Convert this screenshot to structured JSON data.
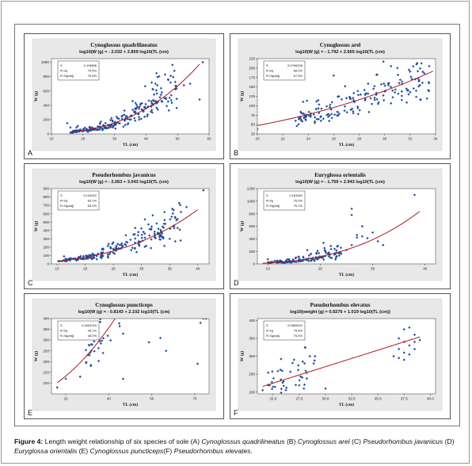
{
  "caption": {
    "label": "Figure 4:",
    "text1": " Length weight relationship of six species of sole (A) ",
    "sp_a": "Cynoglossus quadrilineatus",
    "t_b": " (B) ",
    "sp_b": "Cynoglossus   arel",
    "t_c": " (C) ",
    "sp_c": "Pseudorhombus javanicus",
    "t_d": " (D) ",
    "sp_d": "Euryglossa orientalis",
    "t_e": " (E) ",
    "sp_e": "Cynoglossus puncticeps",
    "t_f": "(F) ",
    "sp_f": "Pseudorhombus elevates."
  },
  "colors": {
    "points": "#1f4e9c",
    "fit": "#b0171f",
    "plot_bg": "#e8e8e8",
    "inner_bg": "#ffffff"
  },
  "chart_data": [
    {
      "id": "A",
      "type": "scatter",
      "letter": "A",
      "title": "Cynoglossus quadrilineatus",
      "subtitle": "log10(W (g) = - 2.032 + 2.859 log10(TL (cm)",
      "xlabel": "TL (cm)",
      "ylabel": "W (g)",
      "xlim": [
        10,
        60
      ],
      "ylim": [
        0,
        1050
      ],
      "xticks": [
        "10",
        "20",
        "30",
        "40",
        "50",
        "60"
      ],
      "xtick_values": [
        10,
        20,
        30,
        40,
        50,
        60
      ],
      "yticks": [
        "0",
        "200",
        "400",
        "600",
        "800",
        "1000"
      ],
      "ytick_values": [
        0,
        200,
        400,
        600,
        800,
        1000
      ],
      "stats": {
        "s_label": "S",
        "s": "0.118686",
        "r_label": "R-Sq",
        "r": "75.5%",
        "ra_label": "R-Sq(adj)",
        "ra": "75.5%"
      },
      "fit": {
        "a": -2.032,
        "b": 2.859,
        "x_range": [
          16,
          57
        ]
      },
      "gen": {
        "n": 230,
        "x_range": [
          16,
          50
        ],
        "noise": 0.13,
        "seed": 11
      },
      "points": [
        [
          15,
          150
        ],
        [
          52,
          680
        ],
        [
          54,
          700
        ],
        [
          57,
          480
        ],
        [
          58,
          1000
        ],
        [
          49,
          880
        ],
        [
          47,
          760
        ],
        [
          45,
          580
        ],
        [
          43,
          700
        ],
        [
          48,
          470
        ],
        [
          42,
          300
        ],
        [
          16,
          90
        ]
      ]
    },
    {
      "id": "B",
      "type": "scatter",
      "letter": "B",
      "title": "Cynoglossus arel",
      "subtitle": "log10(W (g) = - 1.792 + 2.665 log10(TL (cm)",
      "xlabel": "TL (cm)",
      "ylabel": "W (g)",
      "xlim": [
        20,
        34
      ],
      "ylim": [
        25,
        225
      ],
      "xticks": [
        "20",
        "22",
        "24",
        "26",
        "28",
        "30",
        "32",
        "34"
      ],
      "xtick_values": [
        20,
        22,
        24,
        26,
        28,
        30,
        32,
        34
      ],
      "yticks": [
        "25",
        "50",
        "75",
        "100",
        "125",
        "150",
        "175",
        "200",
        "225"
      ],
      "ytick_values": [
        25,
        50,
        75,
        100,
        125,
        150,
        175,
        200,
        225
      ],
      "stats": {
        "s_label": "S",
        "s": "0.0766428",
        "r_label": "R-Sq",
        "r": "68.0%",
        "ra_label": "R-Sq(adj)",
        "ra": "67.8%"
      },
      "fit": {
        "a": -1.792,
        "b": 2.665,
        "x_range": [
          20,
          33.8
        ]
      },
      "gen": {
        "n": 180,
        "x_range": [
          23,
          33.5
        ],
        "noise": 0.085,
        "seed": 23
      },
      "points": [
        [
          20,
          38
        ],
        [
          23,
          60
        ],
        [
          33.5,
          205
        ],
        [
          33,
          190
        ],
        [
          32.5,
          210
        ],
        [
          31,
          200
        ],
        [
          30.5,
          205
        ],
        [
          27,
          120
        ],
        [
          26,
          180
        ],
        [
          25,
          60
        ]
      ]
    },
    {
      "id": "C",
      "type": "scatter",
      "letter": "C",
      "title": "Pseudorhombus javanicus",
      "subtitle": "log10(W (g) = - 2.063 + 3.043 log10(TL (cm)",
      "xlabel": "TL (cm)",
      "ylabel": "W (g)",
      "xlim": [
        14,
        42
      ],
      "ylim": [
        0,
        900
      ],
      "xticks": [
        "15",
        "20",
        "25",
        "30",
        "35",
        "40"
      ],
      "xtick_values": [
        15,
        20,
        25,
        30,
        35,
        40
      ],
      "yticks": [
        "0",
        "100",
        "200",
        "300",
        "400",
        "500",
        "600",
        "700",
        "800",
        "900"
      ],
      "ytick_values": [
        0,
        100,
        200,
        300,
        400,
        500,
        600,
        700,
        800,
        900
      ],
      "stats": {
        "s_label": "S",
        "s": "0.104022",
        "r_label": "R-Sq",
        "r": "83.1%",
        "ra_label": "R-Sq(adj)",
        "ra": "83.0%"
      },
      "fit": {
        "a": -2.063,
        "b": 3.043,
        "x_range": [
          15,
          40
        ]
      },
      "gen": {
        "n": 200,
        "x_range": [
          15,
          37
        ],
        "noise": 0.11,
        "seed": 37
      },
      "points": [
        [
          41,
          880
        ],
        [
          38,
          680
        ],
        [
          37,
          620
        ],
        [
          36,
          550
        ],
        [
          35,
          300
        ],
        [
          36,
          270
        ],
        [
          33,
          420
        ],
        [
          32,
          580
        ],
        [
          34,
          480
        ]
      ]
    },
    {
      "id": "D",
      "type": "scatter",
      "letter": "D",
      "title": "Euryglossa orientalis",
      "subtitle": "log10(W (g) = - 1.759 + 2.943 log10(TL (cm)",
      "xlabel": "TL (cm)",
      "ylabel": "W (g)",
      "xlim": [
        8,
        42
      ],
      "ylim": [
        0,
        1200
      ],
      "xticks": [
        "10",
        "20",
        "30",
        "40"
      ],
      "xtick_values": [
        10,
        20,
        30,
        40
      ],
      "yticks": [
        "0",
        "200",
        "400",
        "600",
        "800",
        "1000",
        "1200"
      ],
      "ytick_values": [
        0,
        200,
        400,
        600,
        800,
        1000,
        1200
      ],
      "stats": {
        "s_label": "S",
        "s": "0.163452",
        "r_label": "R-Sq",
        "r": "76.3%",
        "ra_label": "R-Sq(adj)",
        "ra": "76.1%"
      },
      "fit": {
        "a": -1.759,
        "b": 2.943,
        "x_range": [
          9,
          39
        ]
      },
      "gen": {
        "n": 160,
        "x_range": [
          10,
          24
        ],
        "noise": 0.15,
        "seed": 51
      },
      "points": [
        [
          10,
          75
        ],
        [
          26,
          880
        ],
        [
          26,
          780
        ],
        [
          27,
          460
        ],
        [
          27,
          420
        ],
        [
          28,
          440
        ],
        [
          30,
          500
        ],
        [
          31,
          360
        ],
        [
          32,
          300
        ],
        [
          38,
          1100
        ],
        [
          28,
          600
        ],
        [
          26,
          300
        ],
        [
          25,
          220
        ],
        [
          29,
          410
        ]
      ]
    },
    {
      "id": "E",
      "type": "scatter",
      "letter": "E",
      "title": "Cynoglossus puncticeps",
      "subtitle": "log10(W (g) = - 0.8143 + 2.102 log10(TL (cm)",
      "xlabel": "TL (cm)",
      "ylabel": "W (g)",
      "xlim": [
        20,
        75
      ],
      "ylim": [
        50,
        400
      ],
      "xticks": [
        "25",
        "40",
        "55",
        "70"
      ],
      "xtick_values": [
        25,
        40,
        55,
        70
      ],
      "yticks": [
        "100",
        "150",
        "200",
        "250",
        "300",
        "350",
        "400"
      ],
      "ytick_values": [
        100,
        150,
        200,
        250,
        300,
        350,
        400
      ],
      "stats": {
        "s_label": "S",
        "s": "0.0602019",
        "r_label": "R-Sq",
        "r": "49.1%",
        "ra_label": "R-Sq(adj)",
        "ra": "48.0%"
      },
      "fit": {
        "a": -0.8143,
        "b": 2.102,
        "x_range": [
          22,
          74
        ]
      },
      "gen": {
        "n": 60,
        "x_range": [
          32,
          52
        ],
        "noise": 0.07,
        "seed": 67
      },
      "points": [
        [
          22,
          80
        ],
        [
          25,
          120
        ],
        [
          73,
          400
        ],
        [
          72,
          380
        ],
        [
          74,
          400
        ],
        [
          71,
          190
        ],
        [
          60,
          250
        ],
        [
          58,
          310
        ],
        [
          54,
          290
        ],
        [
          45,
          330
        ],
        [
          38,
          240
        ],
        [
          45,
          120
        ],
        [
          30,
          130
        ]
      ]
    },
    {
      "id": "F",
      "type": "scatter",
      "letter": "F",
      "title": "Pseudorhombus elevatus",
      "subtitle": "log10(weight (g) = 0.9276 + 1.019 log10(TL (cm))",
      "xlabel": "TL (cm)",
      "ylabel": "W (g)",
      "xlim": [
        23.5,
        40.5
      ],
      "ylim": [
        195,
        405
      ],
      "xticks": [
        "25.0",
        "27.5",
        "30.0",
        "32.5",
        "35.0",
        "37.5",
        "40.0"
      ],
      "xtick_values": [
        25,
        27.5,
        30,
        32.5,
        35,
        37.5,
        40
      ],
      "yticks": [
        "200",
        "250",
        "300",
        "350",
        "400"
      ],
      "ytick_values": [
        200,
        250,
        300,
        350,
        400
      ],
      "stats": {
        "s_label": "S",
        "s": "0.0569522",
        "r_label": "R-Sq",
        "r": "75.6%",
        "ra_label": "R-Sq(adj)",
        "ra": "75.4%"
      },
      "fit": {
        "a": 0.9276,
        "b": 1.019,
        "x_range": [
          24,
          39
        ]
      },
      "gen": {
        "n": 40,
        "x_range": [
          24.5,
          29
        ],
        "noise": 0.05,
        "seed": 79
      },
      "points": [
        [
          37.5,
          375
        ],
        [
          38,
          380
        ],
        [
          38.5,
          360
        ],
        [
          37,
          350
        ],
        [
          37.5,
          340
        ],
        [
          38,
          330
        ],
        [
          38.5,
          340
        ],
        [
          39,
          345
        ],
        [
          37,
          320
        ],
        [
          37.5,
          310
        ],
        [
          38,
          305
        ],
        [
          36.5,
          300
        ],
        [
          37,
          295
        ],
        [
          38.5,
          320
        ],
        [
          37.5,
          290
        ],
        [
          29,
          300
        ],
        [
          28,
          280
        ],
        [
          27,
          290
        ],
        [
          26,
          230
        ],
        [
          25,
          215
        ],
        [
          24,
          205
        ],
        [
          24.5,
          220
        ],
        [
          28.5,
          300
        ],
        [
          30,
          210
        ]
      ]
    }
  ]
}
